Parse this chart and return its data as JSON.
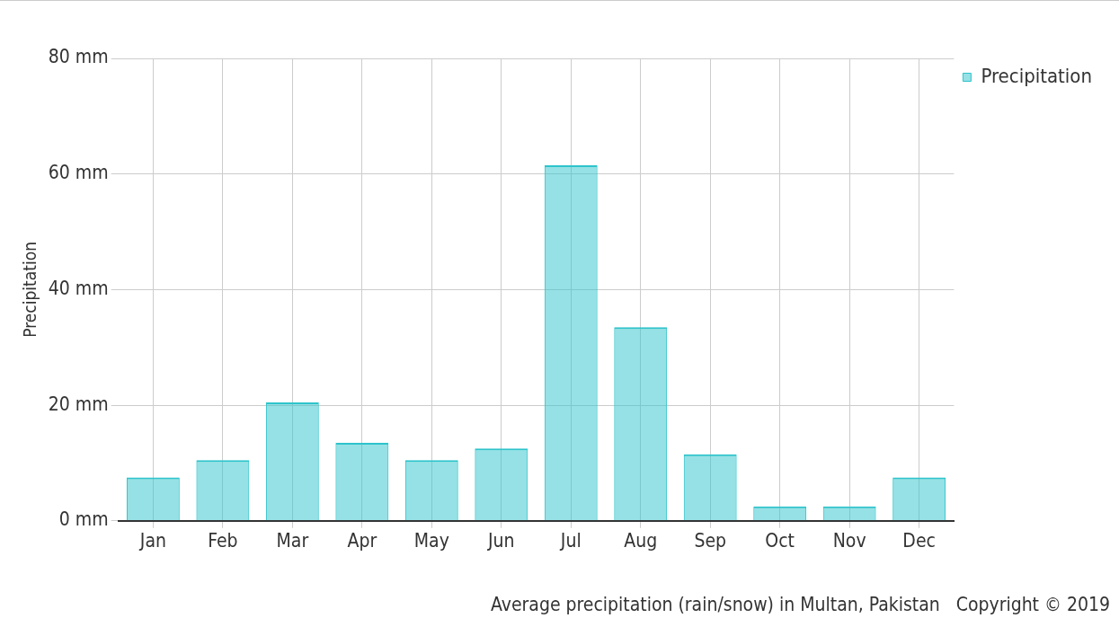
{
  "chart_data": {
    "type": "bar",
    "ylabel": "Precipitation",
    "categories": [
      "Jan",
      "Feb",
      "Mar",
      "Apr",
      "May",
      "Jun",
      "Jul",
      "Aug",
      "Sep",
      "Oct",
      "Nov",
      "Dec"
    ],
    "series": [
      {
        "name": "Precipitation",
        "color": "#2ec4cb",
        "values": [
          7.5,
          10.5,
          20.5,
          13.5,
          10.5,
          12.5,
          61.5,
          33.5,
          11.5,
          2.5,
          2.5,
          7.5
        ]
      }
    ],
    "ylim": [
      0,
      80
    ],
    "yticks": [
      {
        "value": 0,
        "label": "0 mm"
      },
      {
        "value": 20,
        "label": "20 mm"
      },
      {
        "value": 40,
        "label": "40 mm"
      },
      {
        "value": 60,
        "label": "60 mm"
      },
      {
        "value": 80,
        "label": "80 mm"
      }
    ],
    "grid": true,
    "legend": "top right",
    "annotations": [
      "Average precipitation (rain/snow) in Multan, Pakistan   Copyright © 2019"
    ]
  }
}
